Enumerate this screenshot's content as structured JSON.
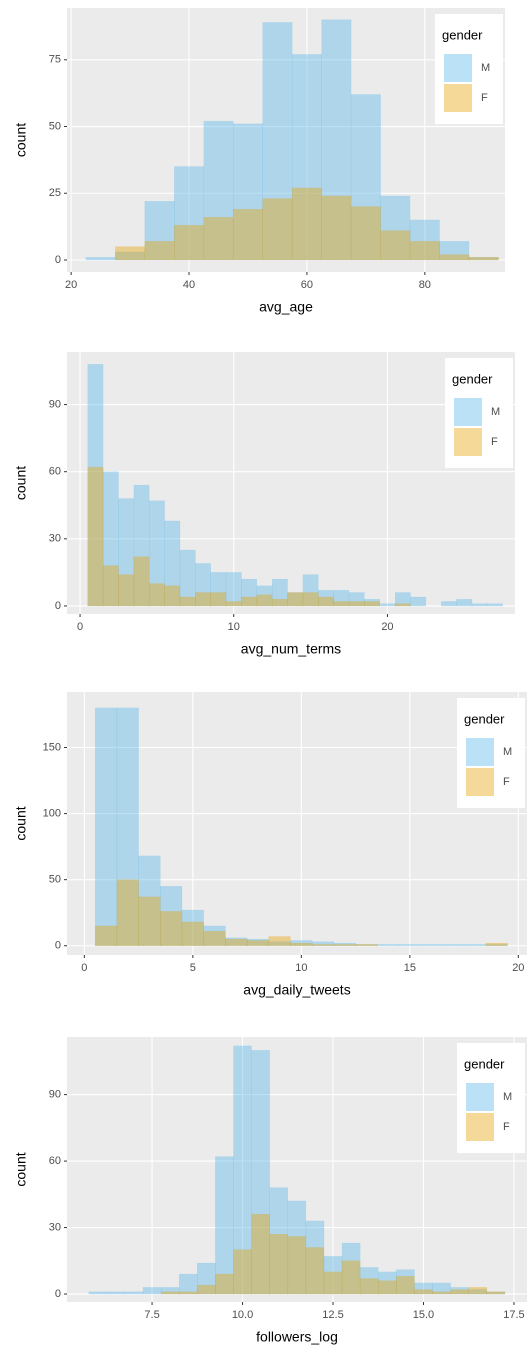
{
  "chart_data": [
    {
      "type": "histogram",
      "xlabel": "avg_age",
      "ylabel": "count",
      "legend_title": "gender",
      "legend": "upper right",
      "grid": true,
      "alpha": 0.4,
      "bins": [
        22.5,
        27.5,
        32.5,
        37.5,
        42.5,
        47.5,
        52.5,
        57.5,
        62.5,
        67.5,
        72.5,
        77.5,
        82.5,
        87.5,
        92.5
      ],
      "series": [
        {
          "name": "M",
          "color": "#56B4E9",
          "values": [
            1,
            3,
            22,
            35,
            52,
            51,
            89,
            77,
            90,
            62,
            24,
            15,
            7,
            1
          ]
        },
        {
          "name": "F",
          "color": "#E69F00",
          "values": [
            0,
            5,
            7,
            13,
            16,
            19,
            23,
            27,
            24,
            20,
            11,
            7,
            2,
            1
          ]
        }
      ],
      "xlim": [
        19.3,
        93.6
      ],
      "ylim": [
        -4.5,
        94.4
      ],
      "xticks": [
        20,
        40,
        60,
        80
      ],
      "yticks": [
        0,
        25,
        50,
        75
      ]
    },
    {
      "type": "histogram",
      "xlabel": "avg_num_terms",
      "ylabel": "count",
      "legend_title": "gender",
      "legend": "upper right",
      "grid": true,
      "alpha": 0.4,
      "bins": [
        0.5,
        1.5,
        2.5,
        3.5,
        4.5,
        5.5,
        6.5,
        7.5,
        8.5,
        9.5,
        10.5,
        11.5,
        12.5,
        13.5,
        14.5,
        15.5,
        16.5,
        17.5,
        18.5,
        19.5,
        20.5,
        21.5,
        22.5,
        23.5,
        24.5,
        25.5,
        26.5,
        27.5
      ],
      "series": [
        {
          "name": "M",
          "color": "#56B4E9",
          "values": [
            108,
            60,
            48,
            54,
            47,
            38,
            25,
            19,
            15,
            15,
            12,
            9,
            12,
            6,
            14,
            7,
            7,
            6,
            3,
            1,
            6,
            4,
            0,
            2,
            3,
            1,
            1
          ]
        },
        {
          "name": "F",
          "color": "#E69F00",
          "values": [
            62,
            18,
            14,
            22,
            10,
            9,
            4,
            6,
            6,
            2,
            4,
            5,
            3,
            6,
            6,
            4,
            2,
            2,
            2,
            0,
            1,
            0,
            0,
            0,
            0,
            0,
            0
          ]
        }
      ],
      "xlim": [
        -0.85,
        28.3
      ],
      "ylim": [
        -3.6,
        113.5
      ],
      "xticks": [
        0,
        10,
        20
      ],
      "yticks": [
        0,
        30,
        60,
        90
      ]
    },
    {
      "type": "histogram",
      "xlabel": "avg_daily_tweets",
      "ylabel": "count",
      "legend_title": "gender",
      "legend": "upper right",
      "grid": true,
      "alpha": 0.4,
      "bins": [
        0.5,
        1.5,
        2.5,
        3.5,
        4.5,
        5.5,
        6.5,
        7.5,
        8.5,
        9.5,
        10.5,
        11.5,
        12.5,
        13.5,
        14.5,
        15.5,
        16.5,
        17.5,
        18.5,
        19.5
      ],
      "series": [
        {
          "name": "M",
          "color": "#56B4E9",
          "values": [
            180,
            180,
            68,
            45,
            27,
            15,
            6,
            5,
            3,
            4,
            3,
            2,
            1,
            1,
            1,
            1,
            1,
            1,
            1
          ]
        },
        {
          "name": "F",
          "color": "#E69F00",
          "values": [
            15,
            50,
            37,
            26,
            18,
            11,
            5,
            4,
            7,
            2,
            1,
            1,
            1,
            0,
            0,
            0,
            0,
            0,
            2
          ]
        }
      ],
      "xlim": [
        -0.8,
        20.4
      ],
      "ylim": [
        -7,
        192
      ],
      "xticks": [
        0,
        5,
        10,
        15,
        20
      ],
      "yticks": [
        0,
        50,
        100,
        150
      ]
    },
    {
      "type": "histogram",
      "xlabel": "followers_log",
      "ylabel": "count",
      "legend_title": "gender",
      "legend": "upper right",
      "grid": true,
      "alpha": 0.4,
      "bins": [
        5.75,
        6.25,
        6.75,
        7.25,
        7.75,
        8.25,
        8.75,
        9.25,
        9.75,
        10.25,
        10.75,
        11.25,
        11.75,
        12.25,
        12.75,
        13.25,
        13.75,
        14.25,
        14.75,
        15.25,
        15.75,
        16.25,
        16.75,
        17.25
      ],
      "series": [
        {
          "name": "M",
          "color": "#56B4E9",
          "values": [
            1,
            1,
            1,
            3,
            3,
            9,
            14,
            62,
            112,
            110,
            48,
            42,
            33,
            17,
            23,
            12,
            10,
            11,
            5,
            5,
            3,
            2,
            1
          ]
        },
        {
          "name": "F",
          "color": "#E69F00",
          "values": [
            0,
            0,
            0,
            0,
            1,
            1,
            4,
            9,
            20,
            36,
            27,
            26,
            21,
            10,
            15,
            7,
            6,
            8,
            2,
            1,
            2,
            3,
            1
          ]
        }
      ],
      "xlim": [
        5.15,
        17.86
      ],
      "ylim": [
        -3.6,
        116
      ],
      "xticks": [
        7.5,
        {
          "value": 10,
          "label": "10.0"
        },
        12.5,
        {
          "value": 15,
          "label": "15.0"
        },
        17.5
      ],
      "yticks": [
        0,
        30,
        60,
        90
      ]
    }
  ]
}
